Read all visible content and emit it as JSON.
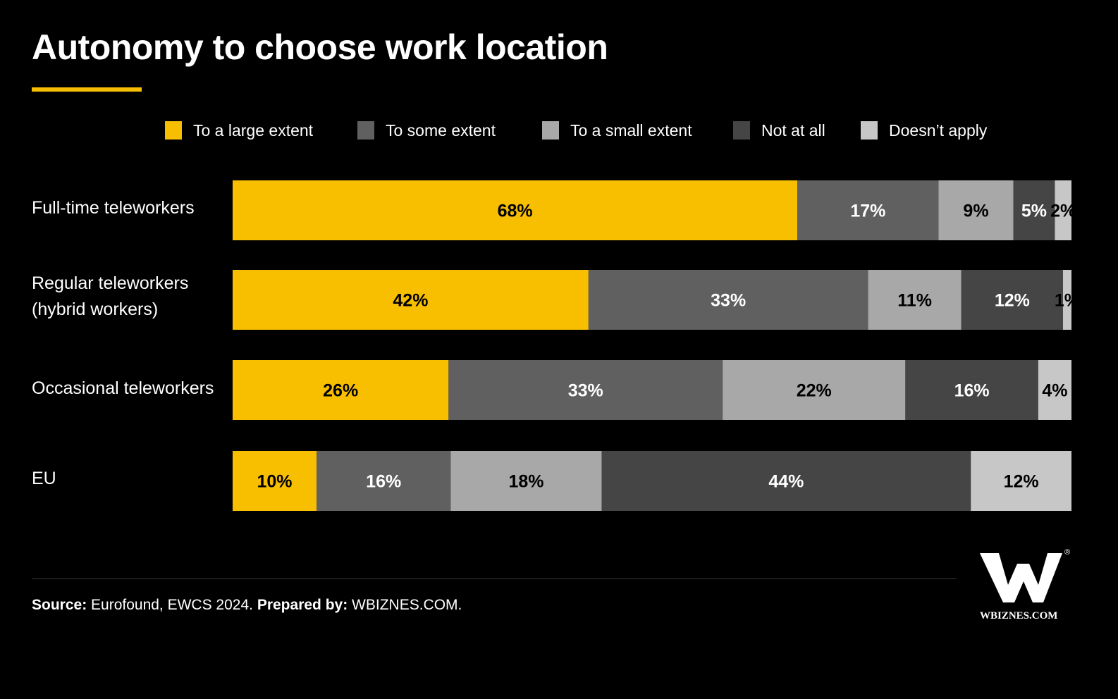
{
  "title": "Autonomy to choose work location",
  "colors": {
    "accent": "#f8be00",
    "to_some_extent": "#606060",
    "to_a_small_extent": "#a8a8a8",
    "not_at_all": "#454545",
    "doesnt_apply": "#c7c7c7",
    "background": "#000000"
  },
  "legend": [
    {
      "label": "To a large extent",
      "color": "#f8be00"
    },
    {
      "label": "To some extent",
      "color": "#606060"
    },
    {
      "label": "To a small extent",
      "color": "#a8a8a8"
    },
    {
      "label": "Not at all",
      "color": "#454545"
    },
    {
      "label": "Doesn’t apply",
      "color": "#c7c7c7"
    }
  ],
  "rows": [
    {
      "label": "Full-time teleworkers"
    },
    {
      "label": "Regular teleworkers",
      "label2": "(hybrid workers)"
    },
    {
      "label": "Occasional teleworkers"
    },
    {
      "label": "EU"
    }
  ],
  "chart_data": {
    "type": "bar",
    "orientation": "horizontal",
    "stacked": true,
    "percent_stacked": true,
    "title": "Autonomy to choose work location",
    "categories": [
      "Full-time teleworkers",
      "Regular teleworkers (hybrid workers)",
      "Occasional teleworkers",
      "EU"
    ],
    "series": [
      {
        "name": "To a large extent",
        "values": [
          68,
          42,
          26,
          10
        ],
        "labels": [
          "68%",
          "42%",
          "26%",
          "10%"
        ],
        "color": "#f8be00",
        "text_color": "#000000"
      },
      {
        "name": "To some extent",
        "values": [
          17,
          33,
          33,
          16
        ],
        "labels": [
          "17%",
          "33%",
          "33%",
          "16%"
        ],
        "color": "#606060",
        "text_color": "#ffffff"
      },
      {
        "name": "To a small extent",
        "values": [
          9,
          11,
          22,
          18
        ],
        "labels": [
          "9%",
          "11%",
          "22%",
          "18%"
        ],
        "color": "#a8a8a8",
        "text_color": "#000000"
      },
      {
        "name": "Not at all",
        "values": [
          5,
          12,
          16,
          44
        ],
        "labels": [
          "5%",
          "12%",
          "16%",
          "44%"
        ],
        "color": "#454545",
        "text_color": "#ffffff"
      },
      {
        "name": "Doesn’t apply",
        "values": [
          2,
          1,
          4,
          12
        ],
        "labels": [
          "2%",
          "1%",
          "4%",
          "12%"
        ],
        "color": "#c7c7c7",
        "text_color": "#000000"
      }
    ],
    "legend_position": "top",
    "grid": false
  },
  "footer": {
    "source_label": "Source:",
    "source_text": " Eurofound, EWCS 2024. ",
    "prepared_label": "Prepared by:",
    "prepared_text": " WBIZNES.COM."
  },
  "logo": {
    "text": "WBIZNES.COM",
    "registered_mark": "®"
  }
}
